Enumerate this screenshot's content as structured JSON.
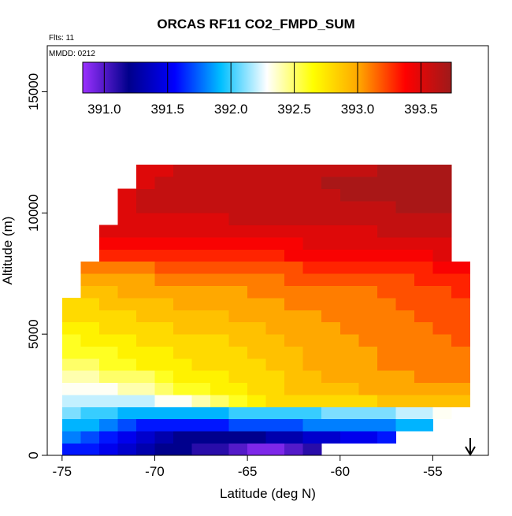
{
  "chart_data": {
    "type": "heatmap",
    "title": "ORCAS RF11 CO2_FMPD_SUM",
    "subtitle": "Flts: 11",
    "annotation": "MMDD: 0212",
    "xlabel": "Latitude (deg N)",
    "ylabel": "Altitude (m)",
    "xlim": [
      -75.8,
      -52.0
    ],
    "ylim": [
      0,
      16900
    ],
    "xticks": [
      -75,
      -70,
      -65,
      -60,
      -55
    ],
    "yticks": [
      0,
      5000,
      10000,
      15000
    ],
    "zlim": [
      390.83,
      393.74
    ],
    "zticks": [
      {
        "value": 391,
        "label": "391.0"
      },
      391.5,
      {
        "value": 392,
        "label": "392.0"
      },
      392.5,
      {
        "value": 393,
        "label": "393.0"
      },
      393.5
    ],
    "colormap": [
      "#9b30ff",
      "#00008b",
      "#0000ff",
      "#00bfff",
      "#ffffff",
      "#ffff00",
      "#ffa500",
      "#ff0000",
      "#9e1a1a"
    ],
    "x": [
      -74.5,
      -73.5,
      -72.5,
      -71.5,
      -70.5,
      -69.5,
      -68.5,
      -67.5,
      -66.5,
      -65.5,
      -64.5,
      -63.5,
      -62.5,
      -61.5,
      -60.5,
      -59.5,
      -58.5,
      -57.5,
      -56.5,
      -55.5,
      -54.5,
      -53.5
    ],
    "y": [
      250,
      750,
      1250,
      1750,
      2250,
      2750,
      3250,
      3750,
      4250,
      4750,
      5250,
      5750,
      6250,
      6750,
      7250,
      7750,
      8250,
      8750,
      9250,
      9750,
      10250,
      10750,
      11250,
      11750
    ],
    "values": [
      [
        391.6,
        391.6,
        391.5,
        391.4,
        391.3,
        391.2,
        391.2,
        391.1,
        391.1,
        391.0,
        390.9,
        390.9,
        391.0,
        391.1,
        null,
        null,
        null,
        null,
        null,
        null,
        null,
        null
      ],
      [
        391.8,
        391.7,
        391.6,
        391.5,
        391.4,
        391.3,
        391.2,
        391.2,
        391.2,
        391.2,
        391.2,
        391.3,
        391.3,
        391.4,
        391.4,
        391.5,
        391.5,
        391.6,
        null,
        null,
        null,
        null
      ],
      [
        391.9,
        391.9,
        391.8,
        391.7,
        391.6,
        391.6,
        391.6,
        391.6,
        391.6,
        391.7,
        391.7,
        391.7,
        391.7,
        391.8,
        391.8,
        391.8,
        391.8,
        391.8,
        391.9,
        391.9,
        null,
        null
      ],
      [
        392.1,
        392.0,
        392.0,
        391.9,
        391.9,
        391.9,
        391.9,
        391.9,
        391.9,
        392.0,
        392.0,
        392.0,
        392.0,
        392.0,
        392.1,
        392.1,
        392.1,
        392.1,
        392.2,
        392.2,
        392.3,
        null
      ],
      [
        392.2,
        392.2,
        392.2,
        392.2,
        392.2,
        392.3,
        392.3,
        392.4,
        392.5,
        392.6,
        392.7,
        392.8,
        392.8,
        392.8,
        392.8,
        392.8,
        392.8,
        392.9,
        392.9,
        392.9,
        392.9,
        392.9
      ],
      [
        392.3,
        392.3,
        392.3,
        392.4,
        392.4,
        392.5,
        392.6,
        392.6,
        392.7,
        392.7,
        392.8,
        392.8,
        392.9,
        392.9,
        392.9,
        392.9,
        393.0,
        393.0,
        393.0,
        393.0,
        393.0,
        393.0
      ],
      [
        392.4,
        392.4,
        392.5,
        392.5,
        392.5,
        392.6,
        392.7,
        392.7,
        392.7,
        392.8,
        392.8,
        392.8,
        392.9,
        392.9,
        393.0,
        393.0,
        393.0,
        393.0,
        393.0,
        393.1,
        393.1,
        393.1
      ],
      [
        392.5,
        392.5,
        392.6,
        392.6,
        392.7,
        392.7,
        392.7,
        392.8,
        392.8,
        392.8,
        392.8,
        392.9,
        392.9,
        393.0,
        393.0,
        393.0,
        393.0,
        393.1,
        393.1,
        393.1,
        393.1,
        393.1
      ],
      [
        392.6,
        392.6,
        392.6,
        392.7,
        392.7,
        392.7,
        392.8,
        392.8,
        392.8,
        392.8,
        392.9,
        392.9,
        392.9,
        393.0,
        393.0,
        393.0,
        393.0,
        393.1,
        393.1,
        393.1,
        393.1,
        393.1
      ],
      [
        392.6,
        392.7,
        392.7,
        392.7,
        392.8,
        392.8,
        392.8,
        392.8,
        392.8,
        392.9,
        392.9,
        392.9,
        393.0,
        393.0,
        393.0,
        393.0,
        393.1,
        393.1,
        393.1,
        393.1,
        393.1,
        393.2
      ],
      [
        392.7,
        392.7,
        392.8,
        392.8,
        392.8,
        392.8,
        392.9,
        392.9,
        392.9,
        392.9,
        392.9,
        393.0,
        393.0,
        393.0,
        393.0,
        393.1,
        393.1,
        393.1,
        393.1,
        393.1,
        393.2,
        393.2
      ],
      [
        392.8,
        392.8,
        392.8,
        392.8,
        392.9,
        392.9,
        392.9,
        392.9,
        392.9,
        393.0,
        393.0,
        393.0,
        393.0,
        393.0,
        393.1,
        393.1,
        393.1,
        393.1,
        393.1,
        393.2,
        393.2,
        393.2
      ],
      [
        392.8,
        392.8,
        392.9,
        392.9,
        392.9,
        392.9,
        393.0,
        393.0,
        393.0,
        393.0,
        393.0,
        393.0,
        393.1,
        393.1,
        393.1,
        393.1,
        393.1,
        393.1,
        393.2,
        393.2,
        393.2,
        393.2
      ],
      [
        null,
        392.9,
        392.9,
        393.0,
        393.0,
        393.0,
        393.0,
        393.0,
        393.0,
        393.0,
        393.1,
        393.1,
        393.1,
        393.1,
        393.1,
        393.1,
        393.1,
        393.2,
        393.2,
        393.2,
        393.2,
        393.3
      ],
      [
        null,
        393.0,
        393.0,
        393.0,
        393.0,
        393.1,
        393.1,
        393.1,
        393.1,
        393.1,
        393.1,
        393.1,
        393.2,
        393.2,
        393.2,
        393.2,
        393.2,
        393.2,
        393.2,
        393.3,
        393.3,
        393.3
      ],
      [
        null,
        393.1,
        393.1,
        393.1,
        393.1,
        393.2,
        393.2,
        393.2,
        393.2,
        393.2,
        393.2,
        393.2,
        393.2,
        393.3,
        393.3,
        393.3,
        393.3,
        393.3,
        393.3,
        393.3,
        393.4,
        393.4
      ],
      [
        null,
        null,
        393.3,
        393.3,
        393.3,
        393.3,
        393.3,
        393.3,
        393.3,
        393.3,
        393.3,
        393.3,
        393.4,
        393.4,
        393.4,
        393.4,
        393.4,
        393.4,
        393.4,
        393.4,
        393.5,
        null
      ],
      [
        null,
        null,
        393.4,
        393.4,
        393.4,
        393.4,
        393.4,
        393.4,
        393.4,
        393.4,
        393.4,
        393.4,
        393.4,
        393.5,
        393.5,
        393.5,
        393.5,
        393.5,
        393.5,
        393.5,
        393.5,
        null
      ],
      [
        null,
        null,
        393.5,
        393.5,
        393.5,
        393.5,
        393.5,
        393.5,
        393.5,
        393.5,
        393.5,
        393.5,
        393.5,
        393.5,
        393.5,
        393.5,
        393.5,
        393.6,
        393.6,
        393.6,
        393.6,
        null
      ],
      [
        null,
        null,
        null,
        393.5,
        393.5,
        393.5,
        393.5,
        393.5,
        393.5,
        393.6,
        393.6,
        393.6,
        393.6,
        393.6,
        393.6,
        393.6,
        393.6,
        393.6,
        393.6,
        393.6,
        393.6,
        null
      ],
      [
        null,
        null,
        null,
        393.5,
        393.6,
        393.6,
        393.6,
        393.6,
        393.6,
        393.6,
        393.6,
        393.6,
        393.6,
        393.6,
        393.6,
        393.6,
        393.6,
        393.6,
        393.7,
        393.7,
        393.7,
        null
      ],
      [
        null,
        null,
        null,
        393.5,
        393.6,
        393.6,
        393.6,
        393.6,
        393.6,
        393.6,
        393.6,
        393.6,
        393.6,
        393.6,
        393.6,
        393.7,
        393.7,
        393.7,
        393.7,
        393.7,
        393.7,
        null
      ],
      [
        null,
        null,
        null,
        null,
        393.5,
        393.6,
        393.6,
        393.6,
        393.6,
        393.6,
        393.6,
        393.6,
        393.6,
        393.6,
        393.7,
        393.7,
        393.7,
        393.7,
        393.7,
        393.7,
        393.7,
        null
      ],
      [
        null,
        null,
        null,
        null,
        393.5,
        393.5,
        393.6,
        393.6,
        393.6,
        393.6,
        393.6,
        393.6,
        393.6,
        393.6,
        393.6,
        393.6,
        393.6,
        393.7,
        393.7,
        393.7,
        393.7,
        null
      ]
    ]
  }
}
